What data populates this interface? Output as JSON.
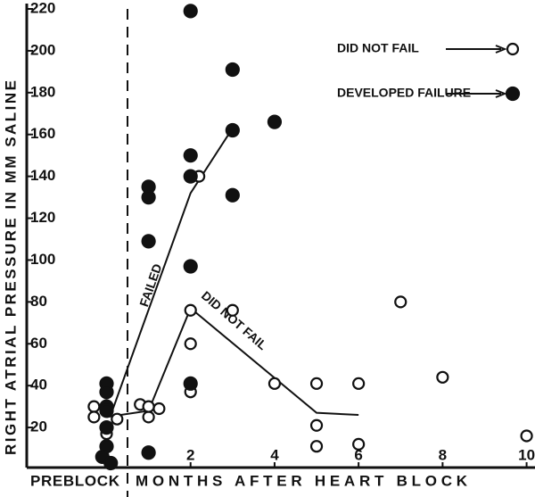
{
  "chart_data": {
    "type": "scatter",
    "y_label": "RIGHT ATRIAL PRESSURE IN MM SALINE",
    "x_label_pre": "PREBLOCK",
    "x_label": "MONTHS AFTER HEART BLOCK",
    "xlim": [
      -1.9,
      10.2
    ],
    "xticks": [
      2,
      4,
      6,
      8,
      10
    ],
    "ylim": [
      0,
      220
    ],
    "yticks": [
      20,
      40,
      60,
      80,
      100,
      120,
      140,
      160,
      180,
      200,
      220
    ],
    "series": [
      {
        "name": "DID NOT FAIL",
        "color": "#111111",
        "filled": false,
        "x": [
          2.2,
          2,
          3,
          2,
          2,
          4,
          5,
          6,
          7,
          8,
          5,
          5,
          6,
          10,
          -0.3,
          -0.3,
          0,
          0.25,
          0.8,
          1,
          1.25,
          1
        ],
        "values": [
          140,
          76,
          76,
          60,
          37,
          41,
          41,
          41,
          80,
          44,
          21,
          11,
          12,
          16,
          30,
          25,
          17,
          24,
          31,
          25,
          29,
          30
        ]
      },
      {
        "name": "DEVELOPED FAILURE",
        "color": "#111111",
        "filled": true,
        "x": [
          2,
          3,
          4,
          3,
          2,
          2,
          3,
          1,
          1,
          1,
          2,
          2,
          1,
          0,
          0,
          0,
          0,
          0,
          0,
          -0.1,
          0.1
        ],
        "values": [
          219,
          191,
          166,
          162,
          150,
          140,
          131,
          135,
          130,
          109,
          97,
          41,
          8,
          41,
          37,
          30,
          28,
          20,
          11,
          6,
          3
        ]
      }
    ],
    "lines": [
      {
        "label": "FAILED",
        "x": [
          0.1,
          2,
          3
        ],
        "values": [
          26,
          132,
          163
        ]
      },
      {
        "label": "DID NOT FAIL",
        "x": [
          0,
          1,
          2,
          5,
          6
        ],
        "values": [
          25,
          28,
          77,
          27,
          26
        ]
      }
    ]
  }
}
